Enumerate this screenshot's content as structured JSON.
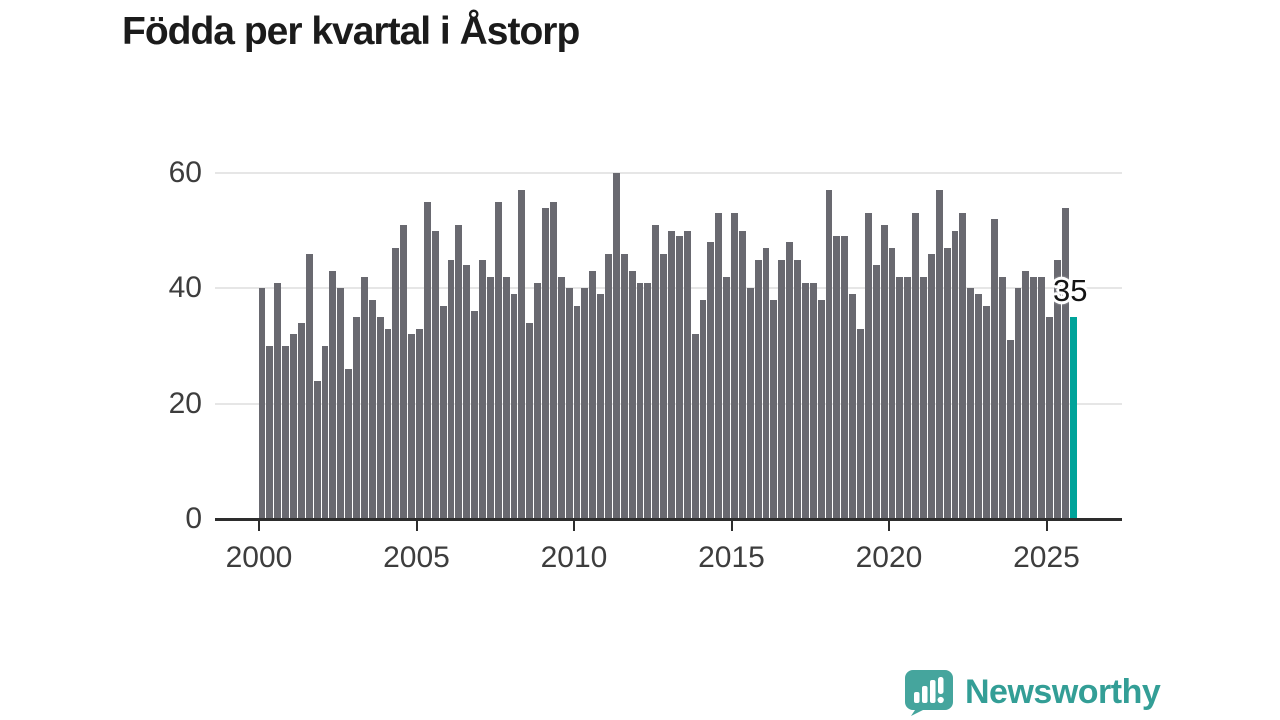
{
  "chart_data": {
    "type": "bar",
    "title": "Födda per kvartal i Åstorp",
    "x_start": "2000-Q1",
    "x_end": "2025-Q4",
    "period": "quarterly",
    "values": [
      40,
      30,
      41,
      30,
      32,
      34,
      46,
      24,
      30,
      43,
      40,
      26,
      35,
      42,
      38,
      35,
      33,
      47,
      51,
      32,
      33,
      55,
      50,
      37,
      45,
      51,
      44,
      36,
      45,
      42,
      55,
      42,
      39,
      57,
      34,
      41,
      54,
      55,
      42,
      40,
      37,
      40,
      43,
      39,
      46,
      60,
      46,
      43,
      41,
      41,
      51,
      46,
      50,
      49,
      50,
      32,
      38,
      48,
      53,
      42,
      53,
      50,
      40,
      45,
      47,
      38,
      45,
      48,
      45,
      41,
      41,
      38,
      57,
      49,
      49,
      39,
      33,
      53,
      44,
      51,
      47,
      42,
      42,
      53,
      42,
      46,
      57,
      47,
      50,
      53,
      40,
      39,
      37,
      52,
      42,
      31,
      40,
      43,
      42,
      42,
      35,
      45,
      54,
      35
    ],
    "ylim": [
      0,
      60
    ],
    "yticks": [
      0,
      20,
      40,
      60
    ],
    "xticks": [
      2000,
      2005,
      2010,
      2015,
      2020,
      2025
    ],
    "grid": "horizontal",
    "bar_color": "#696970",
    "highlight": {
      "index": 103,
      "label": "35",
      "value": 35,
      "color": "#00a39a"
    }
  },
  "branding": {
    "logo_text": "Newsworthy",
    "logo_color": "#339e96"
  }
}
